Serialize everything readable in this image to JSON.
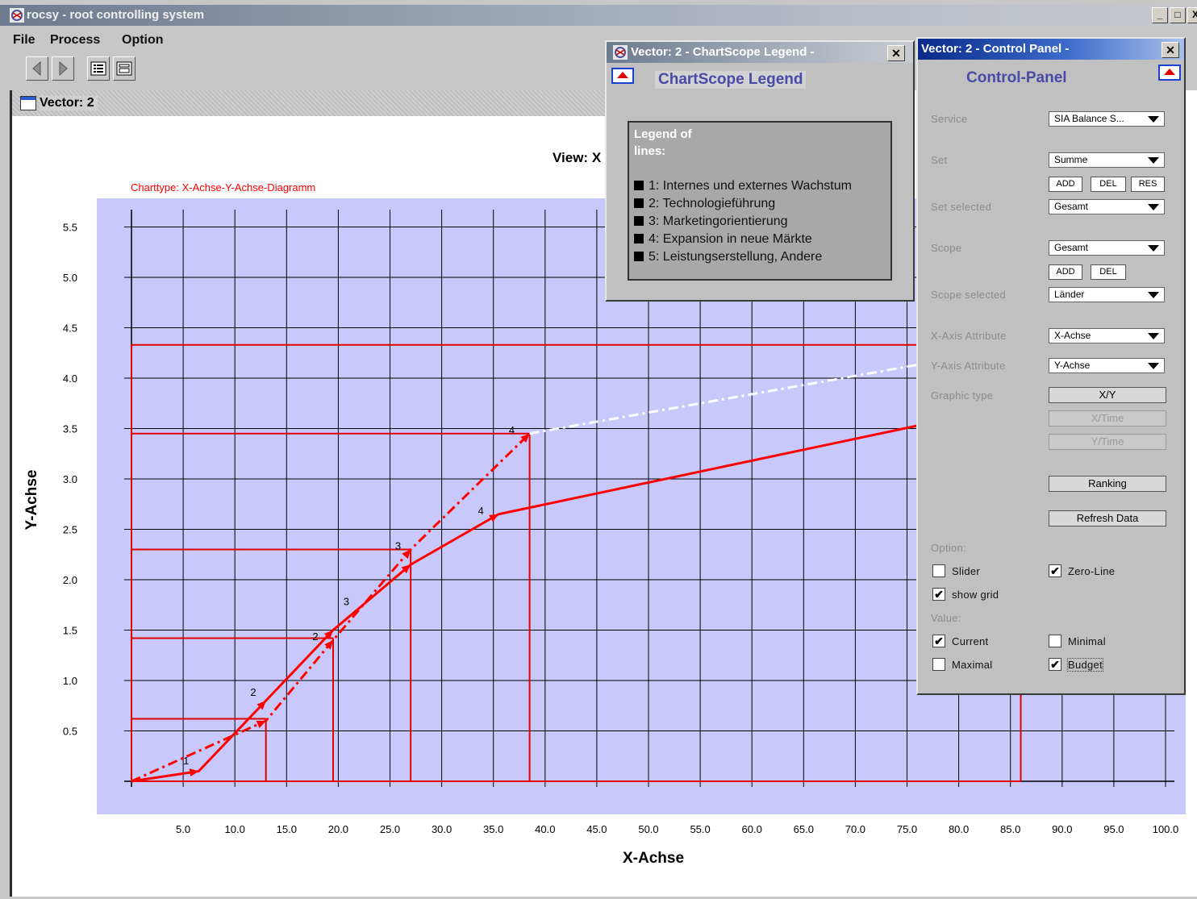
{
  "app": {
    "title": "rocsy - root controlling system",
    "window_controls": [
      "_",
      "□",
      "X"
    ]
  },
  "menu": [
    "File",
    "Process",
    "Option"
  ],
  "toolbar": {
    "icons": [
      "back-arrow-icon",
      "forward-arrow-icon",
      "list-view-icon",
      "grid-view-icon"
    ]
  },
  "inner_window": {
    "title": "Vector: 2",
    "view_label": "View: X"
  },
  "chart_data": {
    "type": "line",
    "charttype_label": "Charttype: X-Achse-Y-Achse-Diagramm",
    "xlabel": "X-Achse",
    "ylabel": "Y-Achse",
    "xlim": [
      0,
      100
    ],
    "ylim": [
      -0.3,
      5.7
    ],
    "x_ticks": [
      "5.0",
      "10.0",
      "15.0",
      "20.0",
      "25.0",
      "30.0",
      "35.0",
      "40.0",
      "45.0",
      "50.0",
      "55.0",
      "60.0",
      "65.0",
      "70.0",
      "75.0",
      "80.0",
      "85.0",
      "90.0",
      "95.0",
      "100.0"
    ],
    "y_ticks": [
      "0.5",
      "1.0",
      "1.5",
      "2.0",
      "2.5",
      "3.0",
      "3.5",
      "4.0",
      "4.5",
      "5.0",
      "5.5"
    ],
    "grid": true,
    "series": [
      {
        "style": "solid",
        "color": "#ff0000",
        "points": [
          [
            0,
            0
          ],
          [
            6.5,
            0.1
          ],
          [
            13,
            0.8
          ],
          [
            19.5,
            1.5
          ],
          [
            27,
            2.15
          ],
          [
            35.5,
            2.65
          ],
          [
            77,
            3.55
          ]
        ],
        "labels": [
          {
            "text": "1",
            "x": 5,
            "y": 0.17
          },
          {
            "text": "2",
            "x": 11.5,
            "y": 0.85
          },
          {
            "text": "3",
            "x": 20.5,
            "y": 1.75
          },
          {
            "text": "4",
            "x": 33.5,
            "y": 2.65
          }
        ]
      },
      {
        "style": "dash-dot",
        "color": "#ff0000",
        "points": [
          [
            0,
            0
          ],
          [
            13,
            0.6
          ],
          [
            19.5,
            1.4
          ],
          [
            27,
            2.3
          ],
          [
            38.5,
            3.45
          ]
        ],
        "labels": [
          {
            "text": "2",
            "x": 17.5,
            "y": 1.4
          },
          {
            "text": "3",
            "x": 25.5,
            "y": 2.3
          },
          {
            "text": "4",
            "x": 36.5,
            "y": 3.45
          }
        ]
      },
      {
        "style": "dash-dot",
        "color": "#ffffff",
        "points": [
          [
            38.5,
            3.45
          ],
          [
            77,
            4.15
          ]
        ]
      }
    ],
    "reference_lines": {
      "y": [
        0.62,
        1.42,
        2.3,
        3.45,
        4.33
      ],
      "x": [
        13,
        19.5,
        27,
        38.5,
        86
      ]
    }
  },
  "legend_window": {
    "title": "Vector: 2  - ChartScope Legend -",
    "heading": "ChartScope Legend",
    "box_title_line1": "Legend of",
    "box_title_line2": "lines:",
    "items": [
      "1: Internes und externes Wachstum",
      "2: Technologieführung",
      "3: Marketingorientierung",
      "4: Expansion in neue Märkte",
      "5: Leistungserstellung, Andere"
    ]
  },
  "control_panel": {
    "title": "Vector: 2  - Control Panel -",
    "heading": "Control-Panel",
    "service_label": "Service",
    "service_value": "SIA Balance S...",
    "set_label": "Set",
    "set_value": "Summe",
    "set_buttons": [
      "ADD",
      "DEL",
      "RES"
    ],
    "set_selected_label": "Set selected",
    "set_selected_value": "Gesamt",
    "scope_label": "Scope",
    "scope_value": "Gesamt",
    "scope_buttons": [
      "ADD",
      "DEL"
    ],
    "scope_selected_label": "Scope selected",
    "scope_selected_value": "Länder",
    "x_axis_label": "X-Axis Attribute",
    "x_axis_value": "X-Achse",
    "y_axis_label": "Y-Axis Attribute",
    "y_axis_value": "Y-Achse",
    "graphic_type_label": "Graphic type",
    "graphic_buttons": [
      "X/Y",
      "X/Time",
      "Y/Time"
    ],
    "ranking_button": "Ranking",
    "refresh_button": "Refresh Data",
    "option_label": "Option:",
    "slider_label": "Slider",
    "slider_checked": false,
    "zero_line_label": "Zero-Line",
    "zero_line_checked": true,
    "show_grid_label": "show grid",
    "show_grid_checked": true,
    "value_label": "Value:",
    "current_label": "Current",
    "current_checked": true,
    "minimal_label": "Minimal",
    "minimal_checked": false,
    "maximal_label": "Maximal",
    "maximal_checked": false,
    "budget_label": "Budget",
    "budget_checked": true
  }
}
